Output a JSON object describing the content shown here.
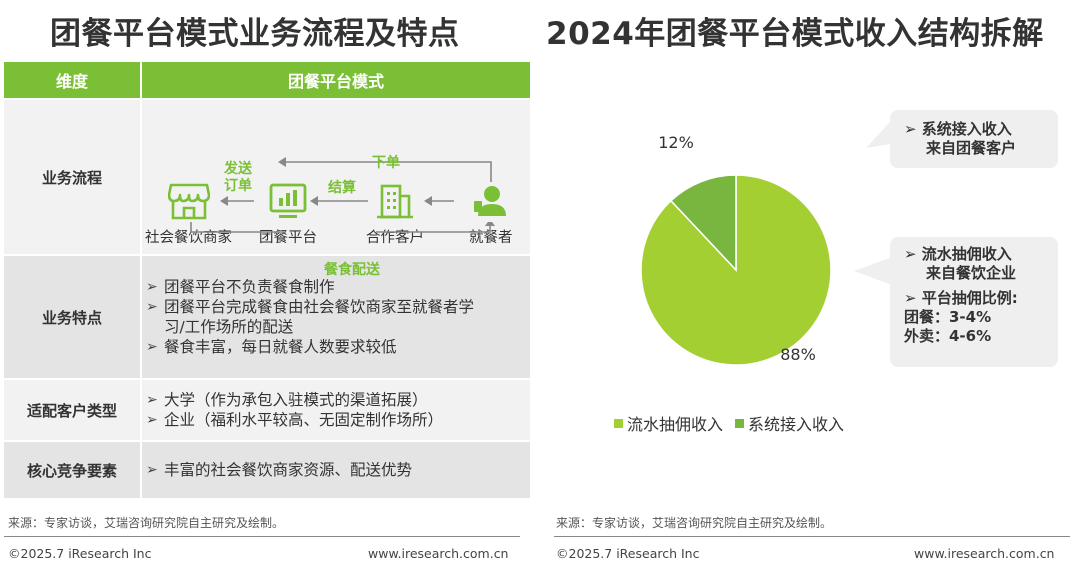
{
  "left": {
    "title": "团餐平台模式业务流程及特点",
    "table": {
      "header": {
        "dimension": "维度",
        "mode": "团餐平台模式"
      },
      "rows": {
        "flow": {
          "label": "业务流程",
          "nodes": {
            "merchant": "社会餐饮商家",
            "platform": "团餐平台",
            "customer": "合作客户",
            "diner": "就餐者"
          },
          "edges": {
            "order": "下单",
            "settle": "结算",
            "dispatch_1": "发送",
            "dispatch_2": "订单",
            "delivery": "餐食配送"
          }
        },
        "features": {
          "label": "业务特点",
          "items": [
            "团餐平台不负责餐食制作",
            "团餐平台完成餐食由社会餐饮商家至就餐者学",
            "餐食丰富，每日就餐人数要求较低"
          ],
          "continuation": "习/工作场所的配送"
        },
        "customers": {
          "label": "适配客户类型",
          "items": [
            "大学（作为承包入驻模式的渠道拓展）",
            "企业（福利水平较高、无固定制作场所）"
          ]
        },
        "competition": {
          "label": "核心竞争要素",
          "items": [
            "丰富的社会餐饮商家资源、配送优势"
          ]
        }
      }
    },
    "source": "来源：专家访谈，艾瑞咨询研究院自主研究及绘制。",
    "copyright": "©2025.7 iResearch Inc",
    "url": "www.iresearch.com.cn"
  },
  "right": {
    "title": "2024年团餐平台模式收入结构拆解",
    "callouts": {
      "system": [
        "系统接入收入",
        "来自团餐客户"
      ],
      "flow": [
        "流水抽佣收入",
        "来自餐饮企业"
      ],
      "commission_title": "平台抽佣比例:",
      "commission_lines": [
        "团餐：3-4%",
        "外卖：4-6%"
      ]
    },
    "source": "来源：专家访谈，艾瑞咨询研究院自主研究及绘制。",
    "copyright": "©2025.7 iResearch Inc",
    "url": "www.iresearch.com.cn"
  },
  "colors": {
    "accent": "#7bbf37",
    "flow_slice": "#a3cf33",
    "system_slice": "#78b640"
  },
  "chart_data": {
    "type": "pie",
    "title": "2024年团餐平台模式收入结构拆解",
    "series": [
      {
        "name": "流水抽佣收入",
        "value": 88,
        "label": "88%"
      },
      {
        "name": "系统接入收入",
        "value": 12,
        "label": "12%"
      }
    ],
    "legend_position": "bottom"
  }
}
